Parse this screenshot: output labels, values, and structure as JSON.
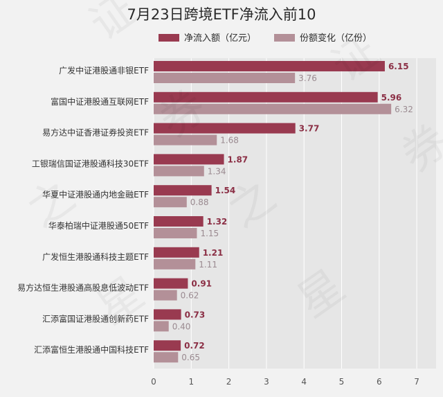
{
  "chart_data": {
    "type": "bar",
    "orientation": "horizontal",
    "title": "7月23日跨境ETF净流入前10",
    "categories": [
      "广发中证港股通非银ETF",
      "富国中证港股通互联网ETF",
      "易方达中证香港证券投资ETF",
      "工银瑞信国证港股通科技30ETF",
      "华夏中证港股通内地金融ETF",
      "华泰柏瑞中证港股通50ETF",
      "广发恒生港股通科技主题ETF",
      "易方达恒生港股通高股息低波动ETF",
      "汇添富国证港股通创新药ETF",
      "汇添富恒生港股通中国科技ETF"
    ],
    "series": [
      {
        "name": "净流入额（亿元）",
        "color": "#993a50",
        "values": [
          6.15,
          5.96,
          3.77,
          1.87,
          1.54,
          1.32,
          1.21,
          0.91,
          0.73,
          0.72
        ],
        "labels": [
          "6.15",
          "5.96",
          "3.77",
          "1.87",
          "1.54",
          "1.32",
          "1.21",
          "0.91",
          "0.73",
          "0.72"
        ]
      },
      {
        "name": "份额变化（亿份）",
        "color": "#b39098",
        "values": [
          3.76,
          6.32,
          1.68,
          1.34,
          0.88,
          1.15,
          1.11,
          0.62,
          0.4,
          0.65
        ],
        "labels": [
          "3.76",
          "6.32",
          "1.68",
          "1.34",
          "0.88",
          "1.15",
          "1.11",
          "0.62",
          "0.40",
          "0.65"
        ]
      }
    ],
    "xlim": [
      0,
      7
    ],
    "x_ticks": [
      "0",
      "1",
      "2",
      "3",
      "4",
      "5",
      "6",
      "7"
    ],
    "grid": "vertical",
    "legend_position": "top-center",
    "plot_background": "#e6e6e6",
    "watermark": "证券之星"
  }
}
